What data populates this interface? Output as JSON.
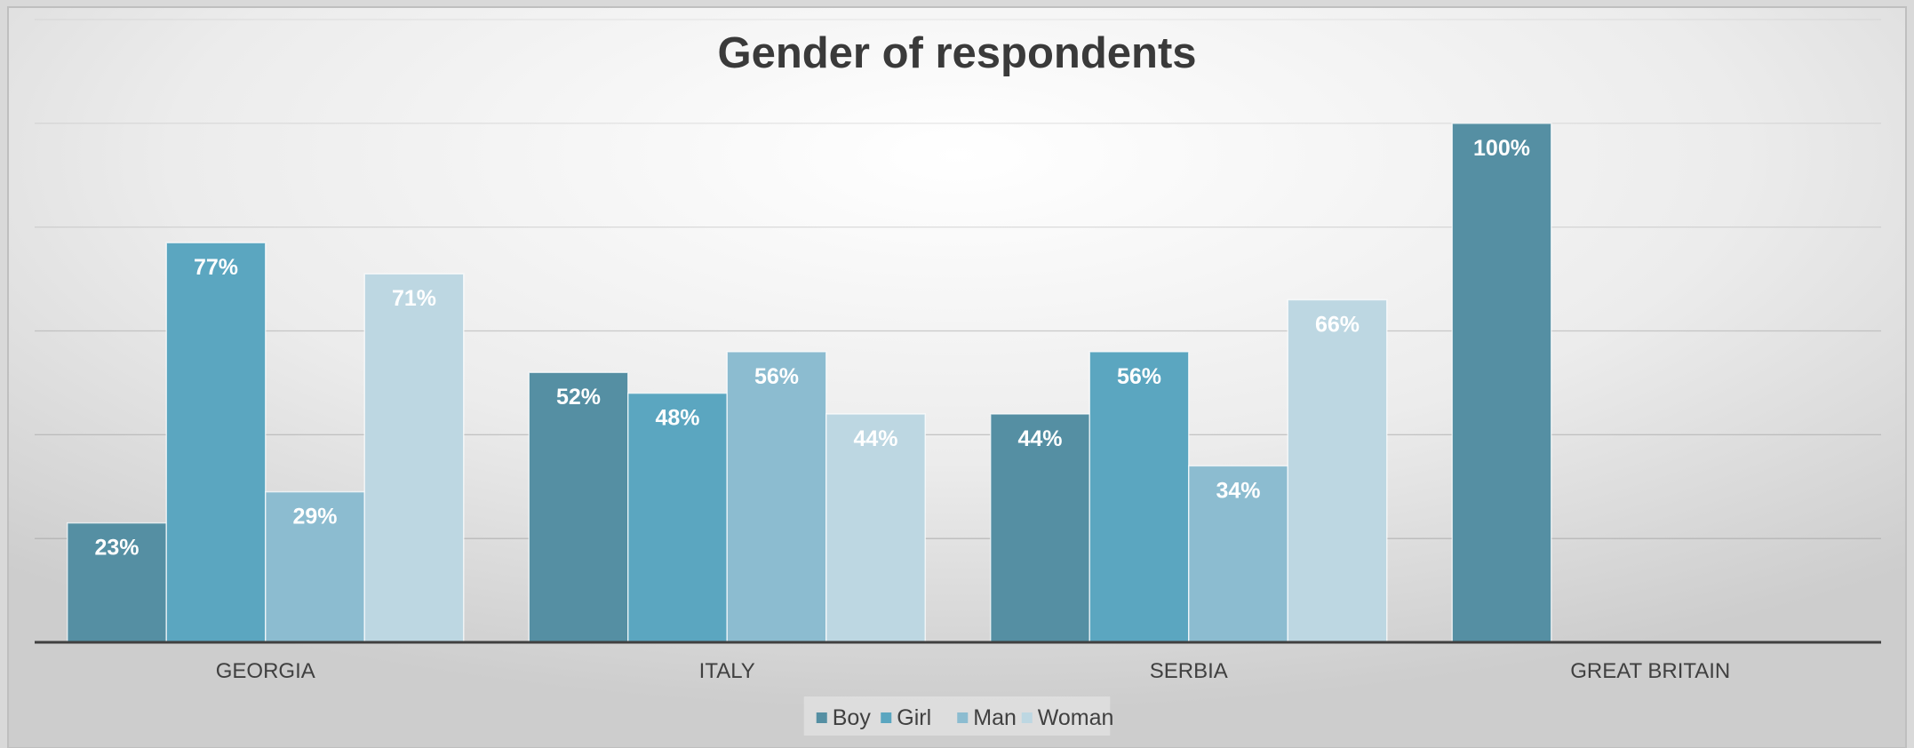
{
  "chart_data": {
    "type": "bar",
    "title": "Gender of respondents",
    "categories": [
      "GEORGIA",
      "ITALY",
      "SERBIA",
      "GREAT BRITAIN"
    ],
    "series": [
      {
        "name": "Boy",
        "color": "#558fa3",
        "values": [
          23,
          52,
          44,
          100
        ],
        "labels": [
          "23%",
          "52%",
          "44%",
          "100%"
        ]
      },
      {
        "name": "Girl",
        "color": "#5ba6c0",
        "values": [
          77,
          48,
          56,
          null
        ],
        "labels": [
          "77%",
          "48%",
          "56%",
          null
        ]
      },
      {
        "name": "Man",
        "color": "#8cbcd0",
        "values": [
          29,
          56,
          34,
          null
        ],
        "labels": [
          "29%",
          "56%",
          "34%",
          null
        ]
      },
      {
        "name": "Woman",
        "color": "#bdd7e2",
        "values": [
          71,
          44,
          66,
          null
        ],
        "labels": [
          "71%",
          "44%",
          "66%",
          null
        ]
      }
    ],
    "ylim": [
      0,
      120
    ],
    "y_gridlines": [
      0,
      20,
      40,
      60,
      80,
      100,
      120
    ],
    "y_axis_labels_shown": false,
    "grid": true,
    "legend_position": "bottom",
    "data_labels": true,
    "colors": {
      "background_center": "#ffffff",
      "background_edge": "#cfcfcf",
      "gridline": "#a6a6a6",
      "axis": "#404040",
      "title": "#3a3a3a",
      "label_text": "#ffffff"
    }
  }
}
